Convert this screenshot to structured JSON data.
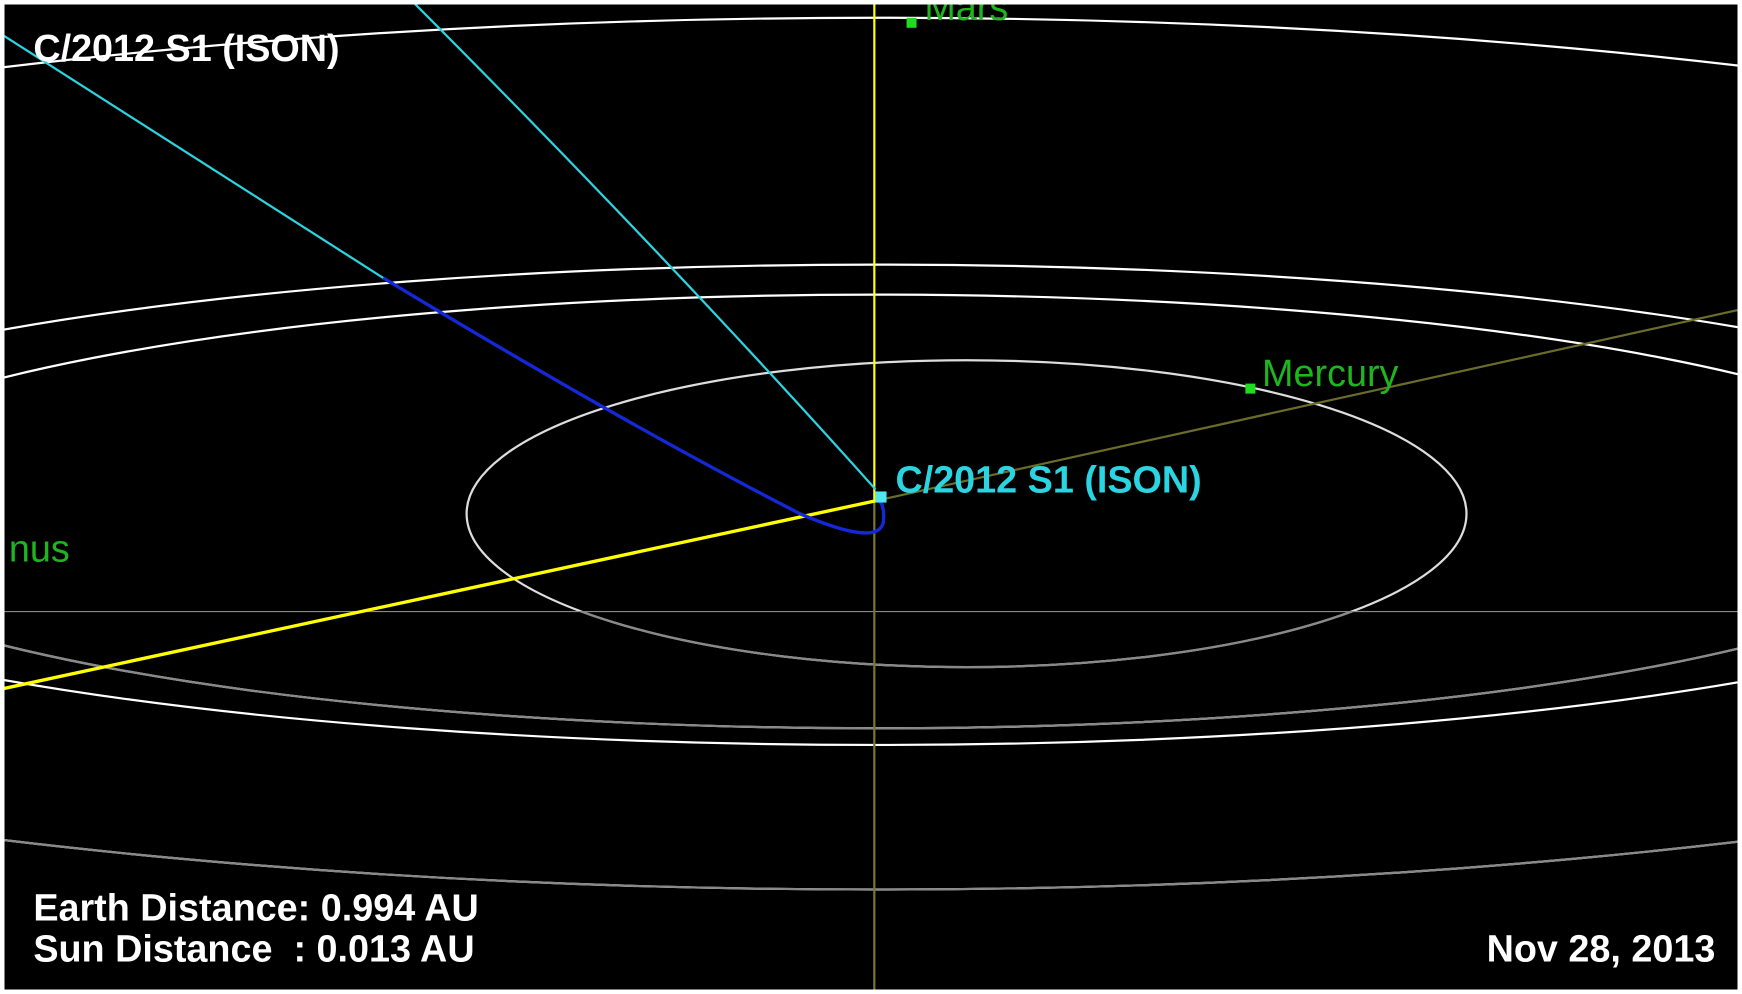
{
  "header": {
    "title": "C/2012 S1 (ISON)"
  },
  "labels": {
    "mars": "Mars",
    "mercury": "Mercury",
    "venus": "nus",
    "comet": "C/2012 S1 (ISON)"
  },
  "info": {
    "earth_distance": "Earth Distance: 0.994 AU",
    "sun_distance": "Sun Distance  : 0.013 AU",
    "date": "Nov 28, 2013"
  }
}
